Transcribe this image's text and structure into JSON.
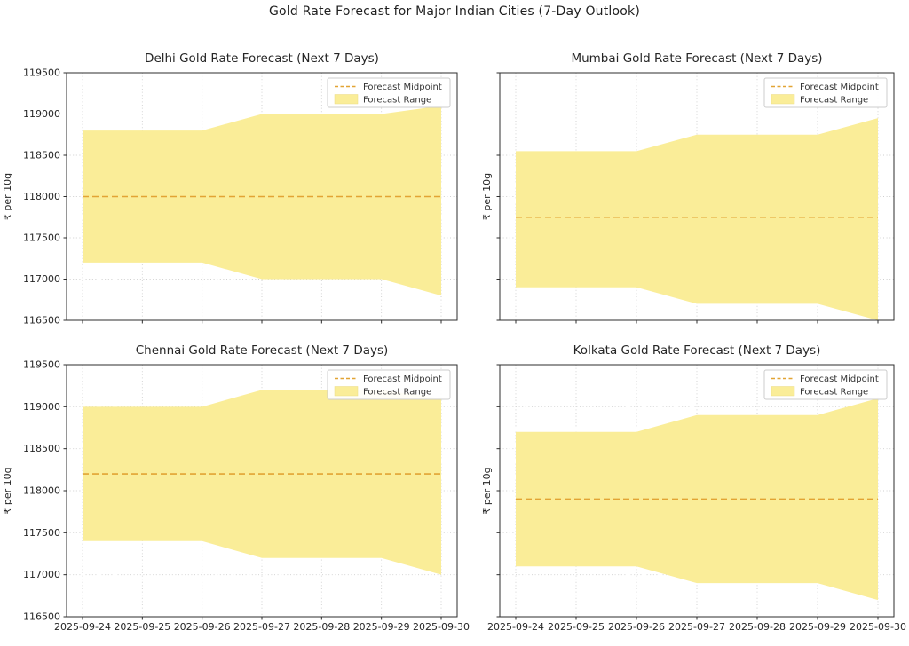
{
  "figure": {
    "title": "Gold Rate Forecast for Major Indian Cities (7-Day Outlook)"
  },
  "legend": {
    "midpoint_label": "Forecast Midpoint",
    "range_label": "Forecast Range"
  },
  "colors": {
    "band": "#FAED98",
    "midpoint": "#E2A434",
    "grid": "#CFCFCF",
    "spine": "#2e2e2e",
    "text": "#262626",
    "legend_border": "#cccccc"
  },
  "chart_data": [
    {
      "id": "delhi",
      "type": "area",
      "title": "Delhi Gold Rate Forecast (Next 7 Days)",
      "xlabel": "",
      "ylabel": "₹ per 10g",
      "ylim": [
        116500,
        119500
      ],
      "yticks": [
        116500,
        117000,
        117500,
        118000,
        118500,
        119000,
        119500
      ],
      "grid": true,
      "legend_position": "upper right",
      "x": [
        "2025-09-24",
        "2025-09-25",
        "2025-09-26",
        "2025-09-27",
        "2025-09-28",
        "2025-09-29",
        "2025-09-30"
      ],
      "series": [
        {
          "name": "Forecast Midpoint",
          "values": [
            118000,
            118000,
            118000,
            118000,
            118000,
            118000,
            118000
          ]
        },
        {
          "name": "Forecast Range (Upper Bound)",
          "values": [
            118800,
            118800,
            118800,
            119000,
            119000,
            119000,
            119100
          ]
        },
        {
          "name": "Forecast Range (Lower Bound)",
          "values": [
            117200,
            117200,
            117200,
            117000,
            117000,
            117000,
            116800
          ]
        }
      ]
    },
    {
      "id": "mumbai",
      "type": "area",
      "title": "Mumbai Gold Rate Forecast (Next 7 Days)",
      "xlabel": "",
      "ylabel": "₹ per 10g",
      "ylim": [
        116500,
        119500
      ],
      "yticks": [
        116500,
        117000,
        117500,
        118000,
        118500,
        119000,
        119500
      ],
      "grid": true,
      "legend_position": "upper right",
      "x": [
        "2025-09-24",
        "2025-09-25",
        "2025-09-26",
        "2025-09-27",
        "2025-09-28",
        "2025-09-29",
        "2025-09-30"
      ],
      "series": [
        {
          "name": "Forecast Midpoint",
          "values": [
            117750,
            117750,
            117750,
            117750,
            117750,
            117750,
            117750
          ]
        },
        {
          "name": "Forecast Range (Upper Bound)",
          "values": [
            118550,
            118550,
            118550,
            118750,
            118750,
            118750,
            118950
          ]
        },
        {
          "name": "Forecast Range (Lower Bound)",
          "values": [
            116900,
            116900,
            116900,
            116700,
            116700,
            116700,
            116500
          ]
        }
      ]
    },
    {
      "id": "chennai",
      "type": "area",
      "title": "Chennai Gold Rate Forecast (Next 7 Days)",
      "xlabel": "",
      "ylabel": "₹ per 10g",
      "ylim": [
        116500,
        119500
      ],
      "yticks": [
        116500,
        117000,
        117500,
        118000,
        118500,
        119000,
        119500
      ],
      "grid": true,
      "legend_position": "upper right",
      "x": [
        "2025-09-24",
        "2025-09-25",
        "2025-09-26",
        "2025-09-27",
        "2025-09-28",
        "2025-09-29",
        "2025-09-30"
      ],
      "series": [
        {
          "name": "Forecast Midpoint",
          "values": [
            118200,
            118200,
            118200,
            118200,
            118200,
            118200,
            118200
          ]
        },
        {
          "name": "Forecast Range (Upper Bound)",
          "values": [
            119000,
            119000,
            119000,
            119200,
            119200,
            119200,
            119100
          ]
        },
        {
          "name": "Forecast Range (Lower Bound)",
          "values": [
            117400,
            117400,
            117400,
            117200,
            117200,
            117200,
            117000
          ]
        }
      ]
    },
    {
      "id": "kolkata",
      "type": "area",
      "title": "Kolkata Gold Rate Forecast (Next 7 Days)",
      "xlabel": "",
      "ylabel": "₹ per 10g",
      "ylim": [
        116500,
        119500
      ],
      "yticks": [
        116500,
        117000,
        117500,
        118000,
        118500,
        119000,
        119500
      ],
      "grid": true,
      "legend_position": "upper right",
      "x": [
        "2025-09-24",
        "2025-09-25",
        "2025-09-26",
        "2025-09-27",
        "2025-09-28",
        "2025-09-29",
        "2025-09-30"
      ],
      "series": [
        {
          "name": "Forecast Midpoint",
          "values": [
            117900,
            117900,
            117900,
            117900,
            117900,
            117900,
            117900
          ]
        },
        {
          "name": "Forecast Range (Upper Bound)",
          "values": [
            118700,
            118700,
            118700,
            118900,
            118900,
            118900,
            119100
          ]
        },
        {
          "name": "Forecast Range (Lower Bound)",
          "values": [
            117100,
            117100,
            117100,
            116900,
            116900,
            116900,
            116700
          ]
        }
      ]
    }
  ]
}
